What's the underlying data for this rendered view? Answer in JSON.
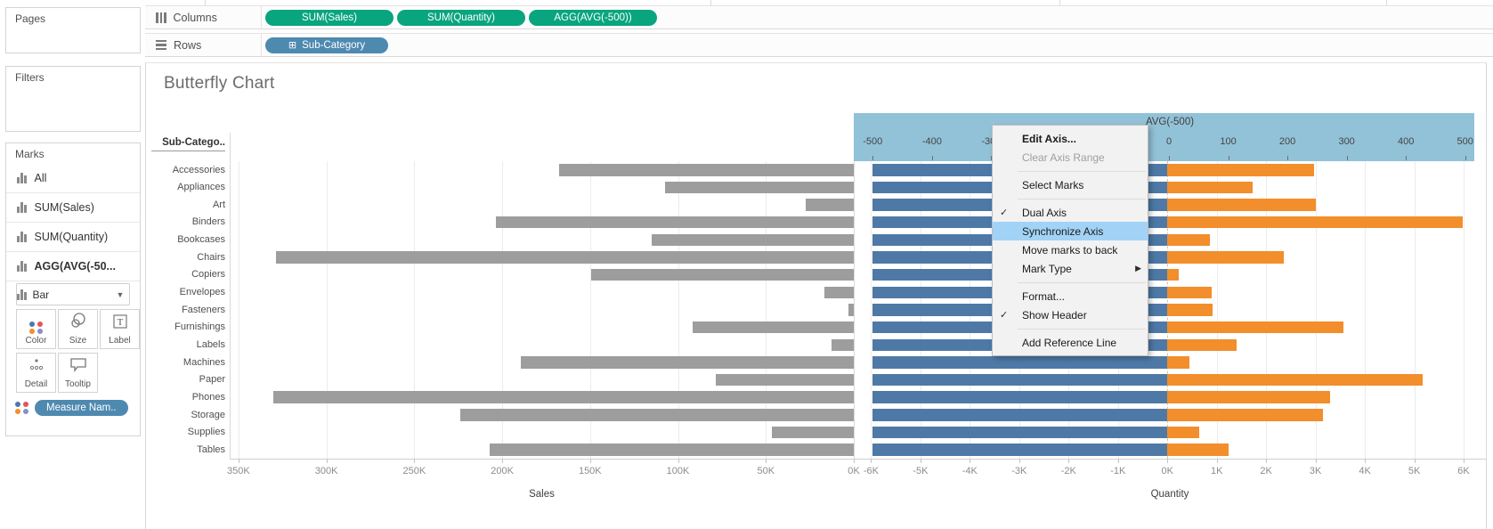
{
  "colors": {
    "pill_green": "#09A57E",
    "pill_blue": "#4E89B0",
    "bar_gray": "#9D9D9D",
    "bar_blue": "#4E79A7",
    "bar_orange": "#F28E2B",
    "axis_highlight": "#92C2D8",
    "menu_highlight": "#A2D3F7",
    "color_dots": [
      "#4E79A7",
      "#E15759",
      "#F28E2B",
      "#8490C8"
    ]
  },
  "sidebar": {
    "pages_label": "Pages",
    "filters_label": "Filters",
    "marks": {
      "title": "Marks",
      "items": [
        {
          "label": "All",
          "bold": false
        },
        {
          "label": "SUM(Sales)",
          "bold": false
        },
        {
          "label": "SUM(Quantity)",
          "bold": false
        },
        {
          "label": "AGG(AVG(-50...",
          "bold": true
        }
      ],
      "mark_type": "Bar",
      "buttons": [
        {
          "label": "Color",
          "icon": "color-dots-icon"
        },
        {
          "label": "Size",
          "icon": "size-circles-icon"
        },
        {
          "label": "Label",
          "icon": "label-t-icon"
        },
        {
          "label": "Detail",
          "icon": "detail-dots-icon"
        },
        {
          "label": "Tooltip",
          "icon": "tooltip-bubble-icon"
        }
      ],
      "legend_pill": "Measure Nam.."
    }
  },
  "shelves": {
    "columns_label": "Columns",
    "rows_label": "Rows",
    "columns_icon": "columns-bars-icon",
    "rows_icon": "rows-lines-icon",
    "column_pills": [
      "SUM(Sales)",
      "SUM(Quantity)",
      "AGG(AVG(-500))"
    ],
    "row_pills": [
      {
        "label": "Sub-Category",
        "prefix": "⊞"
      }
    ]
  },
  "chart_data": {
    "type": "bar",
    "title": "Butterfly Chart",
    "row_header": "Sub-Catego..",
    "categories": [
      "Accessories",
      "Appliances",
      "Art",
      "Binders",
      "Bookcases",
      "Chairs",
      "Copiers",
      "Envelopes",
      "Fasteners",
      "Furnishings",
      "Labels",
      "Machines",
      "Paper",
      "Phones",
      "Storage",
      "Supplies",
      "Tables"
    ],
    "series": [
      {
        "name": "SUM(Sales)",
        "axis": "sales",
        "color_key": "bar_gray",
        "values": [
          167380,
          107532,
          27119,
          203413,
          114880,
          328449,
          149528,
          16476,
          3024,
          91705,
          12486,
          189239,
          78479,
          330007,
          223844,
          46674,
          206966
        ]
      },
      {
        "name": "AGG(AVG(-500))",
        "axis": "avg",
        "color_key": "bar_blue",
        "values": [
          -500,
          -500,
          -500,
          -500,
          -500,
          -500,
          -500,
          -500,
          -500,
          -500,
          -500,
          -500,
          -500,
          -500,
          -500,
          -500,
          -500
        ]
      },
      {
        "name": "SUM(Quantity)",
        "axis": "quantity",
        "color_key": "bar_orange",
        "values": [
          2976,
          1729,
          3000,
          5974,
          868,
          2356,
          234,
          906,
          914,
          3563,
          1400,
          440,
          5178,
          3289,
          3158,
          647,
          1241
        ]
      }
    ],
    "axes": {
      "sales": {
        "title": "Sales",
        "reversed": true,
        "min": 0,
        "max": 355000,
        "ticks": [
          [
            350000,
            "350K"
          ],
          [
            300000,
            "300K"
          ],
          [
            250000,
            "250K"
          ],
          [
            200000,
            "200K"
          ],
          [
            150000,
            "150K"
          ],
          [
            100000,
            "100K"
          ],
          [
            50000,
            "50K"
          ],
          [
            0,
            "0K"
          ]
        ]
      },
      "quantity": {
        "title": "Quantity",
        "min": -6350,
        "max": 6450,
        "ticks": [
          [
            -6000,
            "-6K"
          ],
          [
            -5000,
            "-5K"
          ],
          [
            -4000,
            "-4K"
          ],
          [
            -3000,
            "-3K"
          ],
          [
            -2000,
            "-2K"
          ],
          [
            -1000,
            "-1K"
          ],
          [
            0,
            "0K"
          ],
          [
            1000,
            "1K"
          ],
          [
            2000,
            "2K"
          ],
          [
            3000,
            "3K"
          ],
          [
            4000,
            "4K"
          ],
          [
            5000,
            "5K"
          ],
          [
            6000,
            "6K"
          ]
        ]
      },
      "avg": {
        "title": "AVG(-500)",
        "min": -532,
        "max": 535,
        "highlighted": true,
        "ticks": [
          [
            -500,
            "-500"
          ],
          [
            -400,
            "-400"
          ],
          [
            -300,
            "-300"
          ],
          [
            -200,
            "-200"
          ],
          [
            -100,
            "-100"
          ],
          [
            0,
            "0"
          ],
          [
            100,
            "100"
          ],
          [
            200,
            "200"
          ],
          [
            300,
            "300"
          ],
          [
            400,
            "400"
          ],
          [
            500,
            "500"
          ]
        ]
      }
    },
    "legend_position": "none",
    "grid": true
  },
  "context_menu": {
    "items": [
      {
        "label": "Edit Axis...",
        "bold": true
      },
      {
        "label": "Clear Axis Range",
        "disabled": true,
        "sep_after": true
      },
      {
        "label": "Select Marks",
        "sep_after": true
      },
      {
        "label": "Dual Axis",
        "checked": true
      },
      {
        "label": "Synchronize Axis",
        "highlighted": true
      },
      {
        "label": "Move marks to back"
      },
      {
        "label": "Mark Type",
        "submenu": true,
        "sep_after": true
      },
      {
        "label": "Format..."
      },
      {
        "label": "Show Header",
        "checked": true,
        "sep_after": true
      },
      {
        "label": "Add Reference Line"
      }
    ]
  }
}
